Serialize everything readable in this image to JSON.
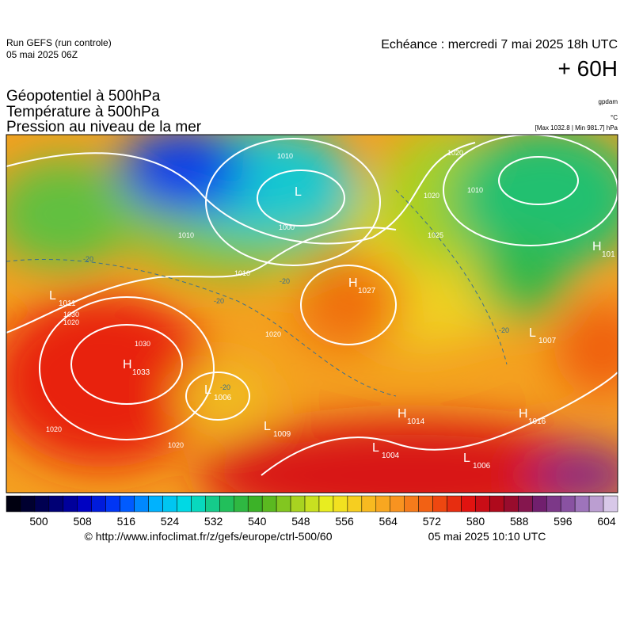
{
  "header": {
    "run": "Run GEFS (run controle)",
    "run_date": "05 mai 2025 06Z",
    "valid": "Echéance : mercredi 7 mai 2025 18h UTC",
    "lead": "+ 60H"
  },
  "fields": {
    "geopotential": "Géopotentiel à 500hPa",
    "temperature": "Température à 500hPa",
    "pressure": "Pression au niveau de la mer"
  },
  "units": {
    "geopotential": "gpdam",
    "temperature": "°C",
    "pressure": "[Max 1032.8 | Min 981.7] hPa"
  },
  "pressure_centers": [
    {
      "kind": "H",
      "value": 1033
    },
    {
      "kind": "H",
      "value": 1027
    },
    {
      "kind": "L",
      "value": 1011
    },
    {
      "kind": "L",
      "value": 1006
    },
    {
      "kind": "L",
      "value": 1009
    },
    {
      "kind": "L",
      "value": 1004
    },
    {
      "kind": "L",
      "value": 1006
    },
    {
      "kind": "H",
      "value": 1014
    },
    {
      "kind": "H",
      "value": 1016
    },
    {
      "kind": "L",
      "value": 1007
    },
    {
      "kind": "H",
      "value": 101
    },
    {
      "kind": "L"
    }
  ],
  "isobar_labels": [
    1030,
    1030,
    1020,
    1020,
    1010,
    1010,
    1010,
    1000,
    1020,
    1025,
    1020,
    1010,
    1020,
    1020
  ],
  "temperature_labels": [
    -20,
    -20,
    -20,
    -20,
    -20
  ],
  "colorbar": {
    "ticks": [
      500,
      508,
      516,
      524,
      532,
      540,
      548,
      556,
      564,
      572,
      580,
      588,
      596,
      604
    ]
  },
  "footer": {
    "source": "© http://www.infoclimat.fr/z/gefs/europe/ctrl-500/60",
    "generated": "05 mai 2025 10:10 UTC"
  }
}
